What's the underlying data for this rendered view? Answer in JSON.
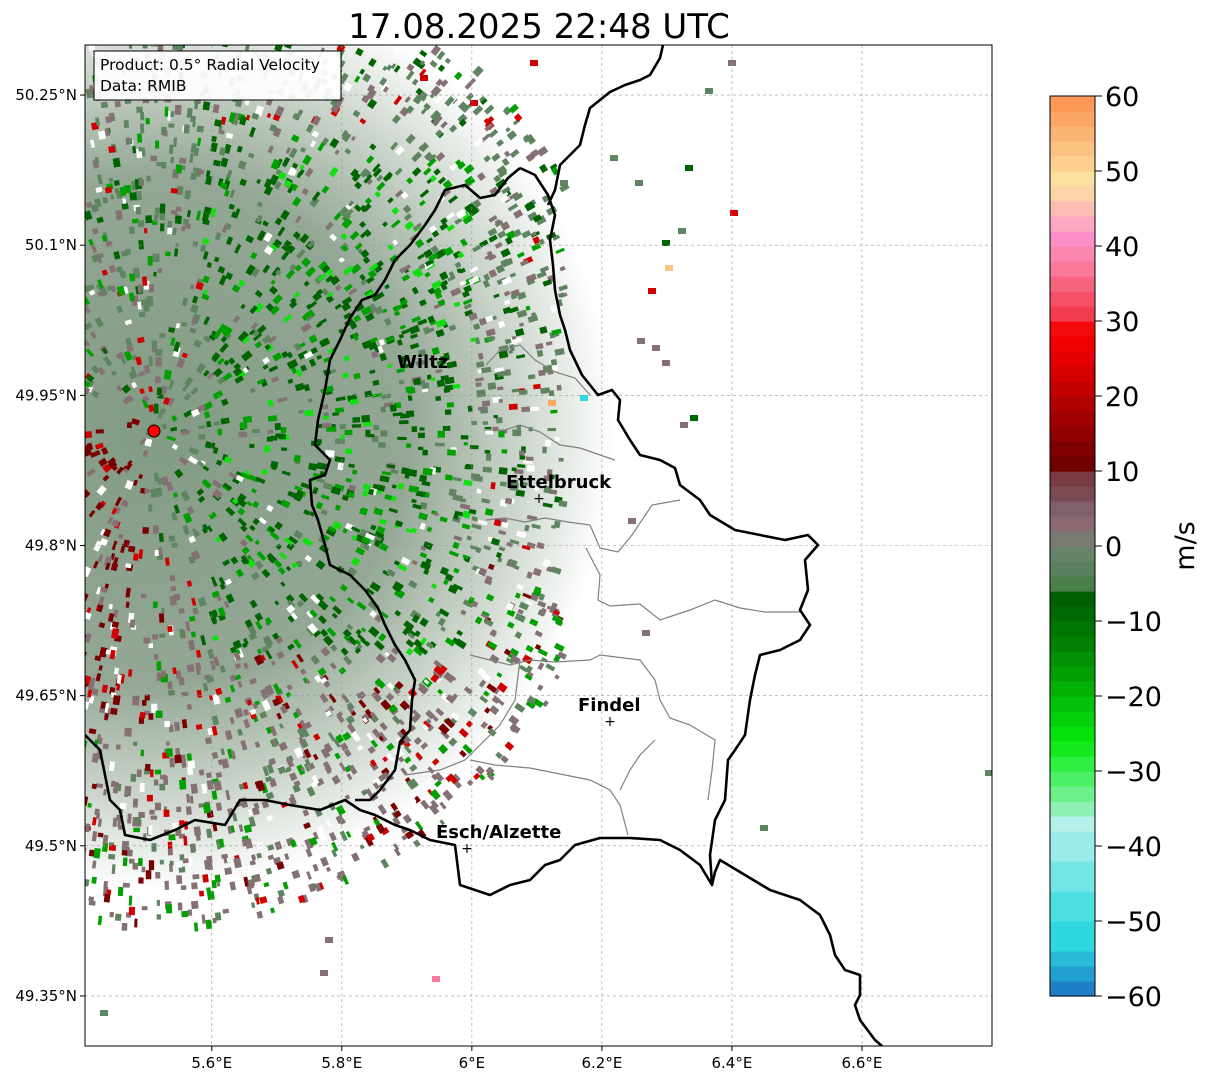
{
  "title": "17.08.2025 22:48 UTC",
  "info_box": {
    "product": "Product: 0.5° Radial Velocity",
    "data": "Data: RMIB"
  },
  "map": {
    "lon_range": [
      5.405,
      6.8
    ],
    "lat_range": [
      49.3,
      50.3
    ],
    "x_ticks": [
      {
        "value": 5.6,
        "label": "5.6°E"
      },
      {
        "value": 5.8,
        "label": "5.8°E"
      },
      {
        "value": 6.0,
        "label": "6°E"
      },
      {
        "value": 6.2,
        "label": "6.2°E"
      },
      {
        "value": 6.4,
        "label": "6.4°E"
      },
      {
        "value": 6.6,
        "label": "6.6°E"
      }
    ],
    "y_ticks": [
      {
        "value": 50.25,
        "label": "50.25°N"
      },
      {
        "value": 50.1,
        "label": "50.1°N"
      },
      {
        "value": 49.95,
        "label": "49.95°N"
      },
      {
        "value": 49.8,
        "label": "49.8°N"
      },
      {
        "value": 49.65,
        "label": "49.65°N"
      },
      {
        "value": 49.5,
        "label": "49.5°N"
      },
      {
        "value": 49.35,
        "label": "49.35°N"
      }
    ],
    "radar_site": {
      "lon": 5.505,
      "lat": 49.914
    },
    "cities": [
      {
        "name": "Wiltz",
        "lon": 5.933,
        "lat": 49.966
      },
      {
        "name": "Ettelbruck",
        "lon": 6.104,
        "lat": 49.847
      },
      {
        "name": "Findel",
        "lon": 6.211,
        "lat": 49.624
      },
      {
        "name": "Esch/Alzette",
        "lon": 5.99,
        "lat": 49.497
      }
    ]
  },
  "colorbar": {
    "label": "m/s",
    "min": -60,
    "max": 60,
    "ticks": [
      {
        "value": 60,
        "label": "60"
      },
      {
        "value": 50,
        "label": "50"
      },
      {
        "value": 40,
        "label": "40"
      },
      {
        "value": 30,
        "label": "30"
      },
      {
        "value": 20,
        "label": "20"
      },
      {
        "value": 10,
        "label": "10"
      },
      {
        "value": 0,
        "label": "0"
      },
      {
        "value": -10,
        "label": "−10"
      },
      {
        "value": -20,
        "label": "−20"
      },
      {
        "value": -30,
        "label": "−30"
      },
      {
        "value": -40,
        "label": "−40"
      },
      {
        "value": -50,
        "label": "−50"
      },
      {
        "value": -60,
        "label": "−60"
      }
    ],
    "stops": [
      {
        "from": -60,
        "to": -58,
        "color": "#1f7fc4"
      },
      {
        "from": -58,
        "to": -56,
        "color": "#21a0cf"
      },
      {
        "from": -56,
        "to": -54,
        "color": "#28bcd6"
      },
      {
        "from": -54,
        "to": -50,
        "color": "#2fd8de"
      },
      {
        "from": -50,
        "to": -46,
        "color": "#4de0e2"
      },
      {
        "from": -46,
        "to": -42,
        "color": "#74e6e6"
      },
      {
        "from": -42,
        "to": -38,
        "color": "#9aecea"
      },
      {
        "from": -38,
        "to": -36,
        "color": "#b5f0ec"
      },
      {
        "from": -36,
        "to": -34,
        "color": "#8ef0b2"
      },
      {
        "from": -34,
        "to": -32,
        "color": "#6bf08a"
      },
      {
        "from": -32,
        "to": -30,
        "color": "#4cf066"
      },
      {
        "from": -30,
        "to": -28,
        "color": "#2ef040"
      },
      {
        "from": -28,
        "to": -26,
        "color": "#14ea1c"
      },
      {
        "from": -26,
        "to": -24,
        "color": "#06e00c"
      },
      {
        "from": -24,
        "to": -22,
        "color": "#04d00a"
      },
      {
        "from": -22,
        "to": -20,
        "color": "#03c008"
      },
      {
        "from": -20,
        "to": -18,
        "color": "#03b006"
      },
      {
        "from": -18,
        "to": -16,
        "color": "#02a005"
      },
      {
        "from": -16,
        "to": -14,
        "color": "#029004"
      },
      {
        "from": -14,
        "to": -12,
        "color": "#018003"
      },
      {
        "from": -12,
        "to": -10,
        "color": "#017502"
      },
      {
        "from": -10,
        "to": -8,
        "color": "#006a02"
      },
      {
        "from": -8,
        "to": -6,
        "color": "#005f01"
      },
      {
        "from": -6,
        "to": -4,
        "color": "#4a7f4a"
      },
      {
        "from": -4,
        "to": -2,
        "color": "#5a8060"
      },
      {
        "from": -2,
        "to": 0,
        "color": "#688468"
      },
      {
        "from": 0,
        "to": 2,
        "color": "#7a7a72"
      },
      {
        "from": 2,
        "to": 4,
        "color": "#8a6a70"
      },
      {
        "from": 4,
        "to": 6,
        "color": "#80606a"
      },
      {
        "from": 6,
        "to": 8,
        "color": "#7a4a52"
      },
      {
        "from": 8,
        "to": 10,
        "color": "#7a3a42"
      },
      {
        "from": 10,
        "to": 12,
        "color": "#6e0000"
      },
      {
        "from": 12,
        "to": 14,
        "color": "#7e0000"
      },
      {
        "from": 14,
        "to": 16,
        "color": "#900000"
      },
      {
        "from": 16,
        "to": 18,
        "color": "#a00000"
      },
      {
        "from": 18,
        "to": 20,
        "color": "#b00000"
      },
      {
        "from": 20,
        "to": 22,
        "color": "#c20000"
      },
      {
        "from": 22,
        "to": 24,
        "color": "#d40000"
      },
      {
        "from": 24,
        "to": 26,
        "color": "#e40000"
      },
      {
        "from": 26,
        "to": 28,
        "color": "#f00000"
      },
      {
        "from": 28,
        "to": 30,
        "color": "#f40a0a"
      },
      {
        "from": 30,
        "to": 32,
        "color": "#f43c50"
      },
      {
        "from": 32,
        "to": 34,
        "color": "#f65066"
      },
      {
        "from": 34,
        "to": 36,
        "color": "#f86480"
      },
      {
        "from": 36,
        "to": 38,
        "color": "#fa7898"
      },
      {
        "from": 38,
        "to": 40,
        "color": "#fb86b0"
      },
      {
        "from": 40,
        "to": 42,
        "color": "#fb90c8"
      },
      {
        "from": 42,
        "to": 44,
        "color": "#fba8c0"
      },
      {
        "from": 44,
        "to": 46,
        "color": "#fbbcb4"
      },
      {
        "from": 46,
        "to": 48,
        "color": "#fdd4a8"
      },
      {
        "from": 48,
        "to": 50,
        "color": "#fde0a0"
      },
      {
        "from": 50,
        "to": 52,
        "color": "#fdd090"
      },
      {
        "from": 52,
        "to": 54,
        "color": "#fcc282"
      },
      {
        "from": 54,
        "to": 56,
        "color": "#fcb474"
      },
      {
        "from": 56,
        "to": 58,
        "color": "#fca666"
      },
      {
        "from": 58,
        "to": 60,
        "color": "#fc9858"
      }
    ]
  },
  "colors": {
    "inbound_dark": "#006400",
    "inbound_mid": "#00a000",
    "inbound_bright": "#10e010",
    "near_zero_green": "#5e8460",
    "near_zero_mauve": "#857074",
    "outbound_dark": "#7a0000",
    "outbound_red": "#d00000",
    "radar_marker": "#ff0000",
    "border": "#000000",
    "canton": "#808080"
  }
}
